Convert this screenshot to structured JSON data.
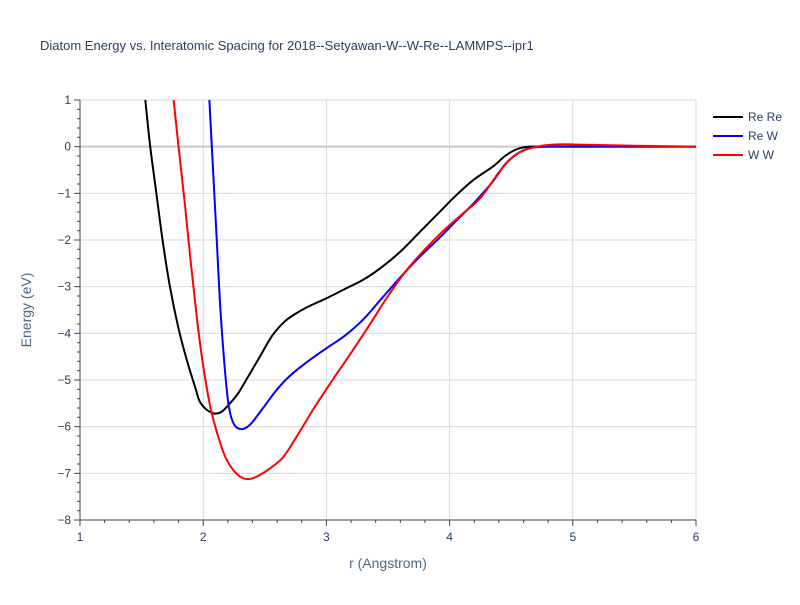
{
  "chart_data": {
    "type": "line",
    "title": "Diatom Energy vs. Interatomic Spacing for 2018--Setyawan-W--W-Re--LAMMPS--ipr1",
    "xlabel": "r (Angstrom)",
    "ylabel": "Energy (eV)",
    "xlim": [
      1,
      6
    ],
    "ylim": [
      -8,
      1
    ],
    "xticks": [
      1,
      2,
      3,
      4,
      5,
      6
    ],
    "yticks": [
      1,
      0,
      -1,
      -2,
      -3,
      -4,
      -5,
      -6,
      -7,
      -8
    ],
    "xtick_labels": [
      "1",
      "2",
      "3",
      "4",
      "5",
      "6"
    ],
    "ytick_labels": [
      "1",
      "0",
      "−1",
      "−2",
      "−3",
      "−4",
      "−5",
      "−6",
      "−7",
      "−8"
    ],
    "grid": true,
    "legend_position": "top-right",
    "series": [
      {
        "name": "Re Re",
        "color": "#000000",
        "points": [
          [
            1.53,
            1.0
          ],
          [
            1.57,
            0.0
          ],
          [
            1.62,
            -1.0
          ],
          [
            1.67,
            -2.0
          ],
          [
            1.73,
            -3.0
          ],
          [
            1.8,
            -3.9
          ],
          [
            1.87,
            -4.6
          ],
          [
            1.94,
            -5.2
          ],
          [
            1.97,
            -5.45
          ],
          [
            2.02,
            -5.62
          ],
          [
            2.07,
            -5.7
          ],
          [
            2.1,
            -5.72
          ],
          [
            2.15,
            -5.68
          ],
          [
            2.2,
            -5.55
          ],
          [
            2.28,
            -5.3
          ],
          [
            2.36,
            -4.95
          ],
          [
            2.46,
            -4.5
          ],
          [
            2.56,
            -4.05
          ],
          [
            2.66,
            -3.75
          ],
          [
            2.75,
            -3.58
          ],
          [
            2.85,
            -3.43
          ],
          [
            3.0,
            -3.25
          ],
          [
            3.15,
            -3.05
          ],
          [
            3.3,
            -2.85
          ],
          [
            3.45,
            -2.58
          ],
          [
            3.6,
            -2.25
          ],
          [
            3.75,
            -1.85
          ],
          [
            3.9,
            -1.45
          ],
          [
            4.05,
            -1.05
          ],
          [
            4.2,
            -0.7
          ],
          [
            4.35,
            -0.43
          ],
          [
            4.45,
            -0.2
          ],
          [
            4.55,
            -0.05
          ],
          [
            4.65,
            0.0
          ],
          [
            4.8,
            0.0
          ],
          [
            5.0,
            0.0
          ],
          [
            5.5,
            0.0
          ],
          [
            6.0,
            0.0
          ]
        ]
      },
      {
        "name": "Re W",
        "color": "#0000ff",
        "points": [
          [
            2.05,
            1.0
          ],
          [
            2.08,
            -0.5
          ],
          [
            2.11,
            -2.0
          ],
          [
            2.14,
            -3.5
          ],
          [
            2.18,
            -4.9
          ],
          [
            2.21,
            -5.6
          ],
          [
            2.25,
            -5.95
          ],
          [
            2.3,
            -6.05
          ],
          [
            2.35,
            -6.02
          ],
          [
            2.4,
            -5.9
          ],
          [
            2.5,
            -5.55
          ],
          [
            2.6,
            -5.2
          ],
          [
            2.7,
            -4.92
          ],
          [
            2.85,
            -4.6
          ],
          [
            3.0,
            -4.32
          ],
          [
            3.15,
            -4.05
          ],
          [
            3.3,
            -3.7
          ],
          [
            3.45,
            -3.25
          ],
          [
            3.6,
            -2.8
          ],
          [
            3.75,
            -2.38
          ],
          [
            3.9,
            -2.0
          ],
          [
            4.05,
            -1.6
          ],
          [
            4.2,
            -1.2
          ],
          [
            4.35,
            -0.75
          ],
          [
            4.45,
            -0.38
          ],
          [
            4.55,
            -0.15
          ],
          [
            4.65,
            -0.03
          ],
          [
            4.8,
            0.0
          ],
          [
            5.0,
            0.0
          ],
          [
            5.5,
            0.0
          ],
          [
            6.0,
            0.0
          ]
        ]
      },
      {
        "name": "W W",
        "color": "#ff0000",
        "points": [
          [
            1.76,
            1.0
          ],
          [
            1.8,
            0.0
          ],
          [
            1.85,
            -1.2
          ],
          [
            1.9,
            -2.5
          ],
          [
            1.95,
            -3.7
          ],
          [
            2.0,
            -4.7
          ],
          [
            2.06,
            -5.6
          ],
          [
            2.12,
            -6.2
          ],
          [
            2.18,
            -6.65
          ],
          [
            2.25,
            -6.95
          ],
          [
            2.32,
            -7.1
          ],
          [
            2.38,
            -7.12
          ],
          [
            2.45,
            -7.05
          ],
          [
            2.55,
            -6.88
          ],
          [
            2.65,
            -6.65
          ],
          [
            2.75,
            -6.25
          ],
          [
            2.9,
            -5.6
          ],
          [
            3.05,
            -5.0
          ],
          [
            3.2,
            -4.42
          ],
          [
            3.35,
            -3.82
          ],
          [
            3.5,
            -3.2
          ],
          [
            3.65,
            -2.65
          ],
          [
            3.8,
            -2.2
          ],
          [
            3.95,
            -1.8
          ],
          [
            4.1,
            -1.45
          ],
          [
            4.25,
            -1.1
          ],
          [
            4.4,
            -0.55
          ],
          [
            4.5,
            -0.25
          ],
          [
            4.6,
            -0.08
          ],
          [
            4.75,
            0.02
          ],
          [
            4.9,
            0.05
          ],
          [
            5.1,
            0.04
          ],
          [
            5.5,
            0.02
          ],
          [
            6.0,
            0.0
          ]
        ]
      }
    ]
  }
}
